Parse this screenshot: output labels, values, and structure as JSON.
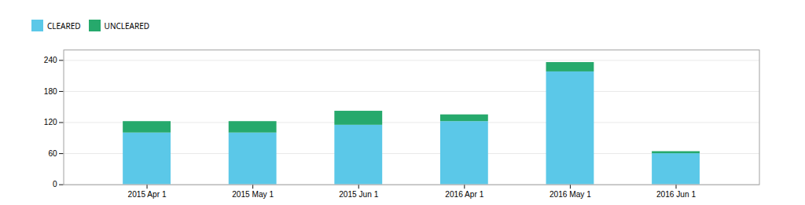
{
  "chart_data": {
    "type": "bar",
    "stacked": true,
    "categories": [
      "2015 Apr 1",
      "2015 May 1",
      "2015 Jun 1",
      "2016 Apr 1",
      "2016 May 1",
      "2016 Jun 1"
    ],
    "series": [
      {
        "name": "CLEARED",
        "color": "#5bc8e8",
        "values": [
          100,
          100,
          115,
          122,
          218,
          60
        ]
      },
      {
        "name": "UNCLEARED",
        "color": "#26a96c",
        "values": [
          22,
          22,
          27,
          13,
          18,
          4
        ]
      }
    ],
    "ylim": [
      0,
      260
    ],
    "yticks": [
      0,
      60,
      120,
      180,
      240
    ],
    "grid": true,
    "legend": "top-left"
  }
}
